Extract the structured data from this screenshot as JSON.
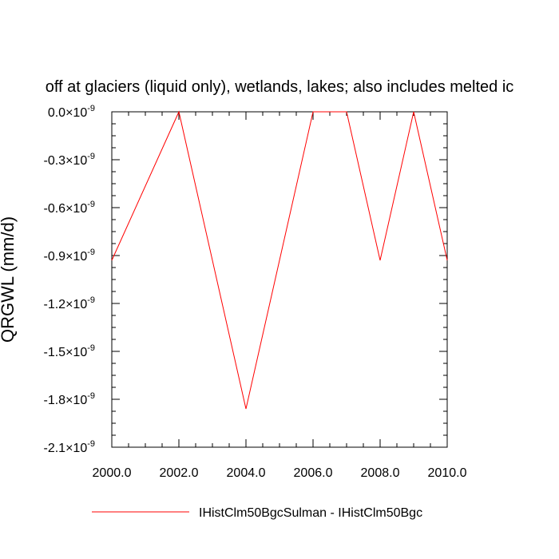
{
  "chart_data": {
    "type": "line",
    "title": "off at glaciers (liquid only), wetlands, lakes; also includes melted ic",
    "ylabel": "QRGWL  (mm/d)",
    "xlabel": "",
    "xlim": [
      2000,
      2010
    ],
    "ylim": [
      -2.1e-09,
      0
    ],
    "x_ticks": [
      "2000.0",
      "2002.0",
      "2004.0",
      "2006.0",
      "2008.0",
      "2010.0"
    ],
    "y_ticks": [
      {
        "value": 0.0,
        "mant": "0.0",
        "exp": "-9"
      },
      {
        "value": -3e-10,
        "mant": "-0.3",
        "exp": "-9"
      },
      {
        "value": -6e-10,
        "mant": "-0.6",
        "exp": "-9"
      },
      {
        "value": -9e-10,
        "mant": "-0.9",
        "exp": "-9"
      },
      {
        "value": -1.2e-09,
        "mant": "-1.2",
        "exp": "-9"
      },
      {
        "value": -1.5e-09,
        "mant": "-1.5",
        "exp": "-9"
      },
      {
        "value": -1.8e-09,
        "mant": "-1.8",
        "exp": "-9"
      },
      {
        "value": -2.1e-09,
        "mant": "-2.1",
        "exp": "-9"
      }
    ],
    "y_times_symbol": "×10",
    "series": [
      {
        "name": "IHistClm50BgcSulman - IHistClm50Bgc",
        "color": "#ff0000",
        "x": [
          2000,
          2002,
          2004,
          2006,
          2007,
          2008,
          2009,
          2010
        ],
        "values": [
          -9.3e-10,
          0.0,
          -1.86e-09,
          0.0,
          0.0,
          -9.3e-10,
          0.0,
          -9.3e-10
        ]
      }
    ],
    "grid": false,
    "legend_placement": "bottom"
  }
}
